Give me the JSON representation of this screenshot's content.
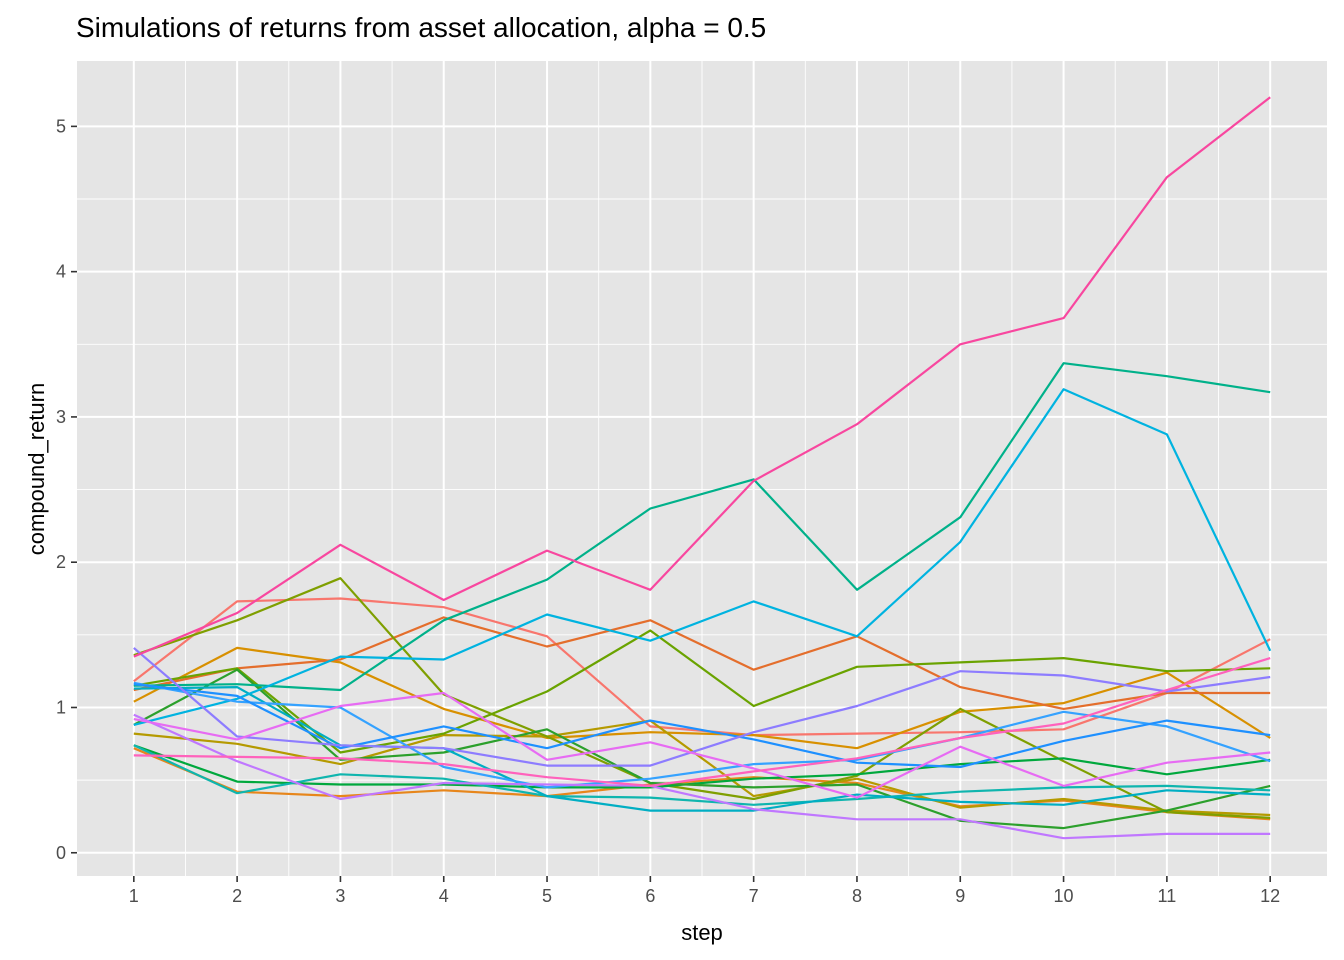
{
  "chart_data": {
    "type": "line",
    "title": "Simulations of returns from asset allocation, alpha = 0.5",
    "xlabel": "step",
    "ylabel": "compound_return",
    "x": [
      1,
      2,
      3,
      4,
      5,
      6,
      7,
      8,
      9,
      10,
      11,
      12
    ],
    "xlim": [
      0.45,
      12.55
    ],
    "ylim": [
      -0.16,
      5.45
    ],
    "x_ticks": [
      1,
      2,
      3,
      4,
      5,
      6,
      7,
      8,
      9,
      10,
      11,
      12
    ],
    "y_ticks": [
      0,
      1,
      2,
      3,
      4,
      5
    ],
    "grid": true,
    "legend": "none",
    "colors": {
      "panel_background": "#e5e5e5",
      "grid": "#ffffff",
      "tick_label": "#4d4d4d",
      "tick_mark": "#333333"
    },
    "series": [
      {
        "color": "#F8766D",
        "values": [
          1.18,
          1.73,
          1.75,
          1.69,
          1.49,
          0.87,
          0.81,
          0.82,
          0.83,
          0.85,
          1.1,
          1.47
        ]
      },
      {
        "color": "#E7861B",
        "values": [
          0.72,
          0.42,
          0.39,
          0.43,
          0.39,
          0.47,
          0.52,
          0.48,
          0.32,
          0.36,
          0.28,
          0.23
        ]
      },
      {
        "color": "#D89000",
        "values": [
          1.04,
          1.41,
          1.31,
          0.99,
          0.79,
          0.83,
          0.81,
          0.72,
          0.97,
          1.03,
          1.24,
          0.79
        ]
      },
      {
        "color": "#E46E2C",
        "values": [
          1.12,
          1.27,
          1.33,
          1.62,
          1.42,
          1.6,
          1.26,
          1.49,
          1.14,
          0.99,
          1.1,
          1.1
        ]
      },
      {
        "color": "#B59A00",
        "values": [
          0.82,
          0.75,
          0.61,
          0.81,
          0.8,
          0.91,
          0.39,
          0.51,
          0.31,
          0.37,
          0.29,
          0.26
        ]
      },
      {
        "color": "#7F9F00",
        "values": [
          1.36,
          1.6,
          1.89,
          1.09,
          0.8,
          0.48,
          0.37,
          0.53,
          0.99,
          0.63,
          0.28,
          0.24
        ]
      },
      {
        "color": "#6AA300",
        "values": [
          1.15,
          1.27,
          0.69,
          0.82,
          1.11,
          1.53,
          1.01,
          1.28,
          1.31,
          1.34,
          1.25,
          1.27
        ]
      },
      {
        "color": "#00A83D",
        "values": [
          0.74,
          0.49,
          0.47,
          0.47,
          0.45,
          0.45,
          0.51,
          0.54,
          0.61,
          0.65,
          0.54,
          0.64
        ]
      },
      {
        "color": "#2CA02C",
        "values": [
          0.88,
          1.26,
          0.64,
          0.69,
          0.85,
          0.48,
          0.45,
          0.47,
          0.22,
          0.17,
          0.29,
          0.46
        ]
      },
      {
        "color": "#00B18A",
        "values": [
          1.15,
          1.16,
          1.12,
          1.6,
          1.88,
          2.37,
          2.57,
          1.81,
          2.31,
          3.37,
          3.28,
          3.17
        ]
      },
      {
        "color": "#0FB5AE",
        "values": [
          0.74,
          0.41,
          0.54,
          0.51,
          0.39,
          0.38,
          0.33,
          0.37,
          0.42,
          0.45,
          0.46,
          0.43
        ]
      },
      {
        "color": "#00AEC3",
        "values": [
          1.13,
          1.14,
          0.74,
          0.72,
          0.39,
          0.29,
          0.29,
          0.4,
          0.35,
          0.33,
          0.43,
          0.4
        ]
      },
      {
        "color": "#00B3E0",
        "values": [
          0.88,
          1.06,
          1.35,
          1.33,
          1.64,
          1.46,
          1.73,
          1.49,
          2.14,
          3.19,
          2.88,
          1.39
        ]
      },
      {
        "color": "#35A2FF",
        "values": [
          1.17,
          1.04,
          1.0,
          0.59,
          0.45,
          0.51,
          0.61,
          0.64,
          0.79,
          0.97,
          0.87,
          0.63
        ]
      },
      {
        "color": "#1E90FF",
        "values": [
          1.16,
          1.08,
          0.72,
          0.87,
          0.72,
          0.91,
          0.78,
          0.62,
          0.59,
          0.77,
          0.91,
          0.81
        ]
      },
      {
        "color": "#8D7CFF",
        "values": [
          1.41,
          0.8,
          0.74,
          0.72,
          0.6,
          0.6,
          0.83,
          1.01,
          1.25,
          1.22,
          1.11,
          1.21
        ]
      },
      {
        "color": "#C077FF",
        "values": [
          0.95,
          0.63,
          0.37,
          0.48,
          0.47,
          0.46,
          0.3,
          0.23,
          0.23,
          0.1,
          0.13,
          0.13
        ]
      },
      {
        "color": "#E76BF3",
        "values": [
          0.92,
          0.78,
          1.01,
          1.1,
          0.64,
          0.76,
          0.58,
          0.38,
          0.73,
          0.46,
          0.62,
          0.69
        ]
      },
      {
        "color": "#FF62BC",
        "values": [
          0.67,
          0.66,
          0.65,
          0.61,
          0.52,
          0.46,
          0.56,
          0.65,
          0.79,
          0.89,
          1.12,
          1.34
        ]
      },
      {
        "color": "#F8479F",
        "values": [
          1.35,
          1.65,
          2.12,
          1.74,
          2.08,
          1.81,
          2.56,
          2.95,
          3.5,
          3.68,
          4.65,
          5.2
        ]
      }
    ]
  }
}
